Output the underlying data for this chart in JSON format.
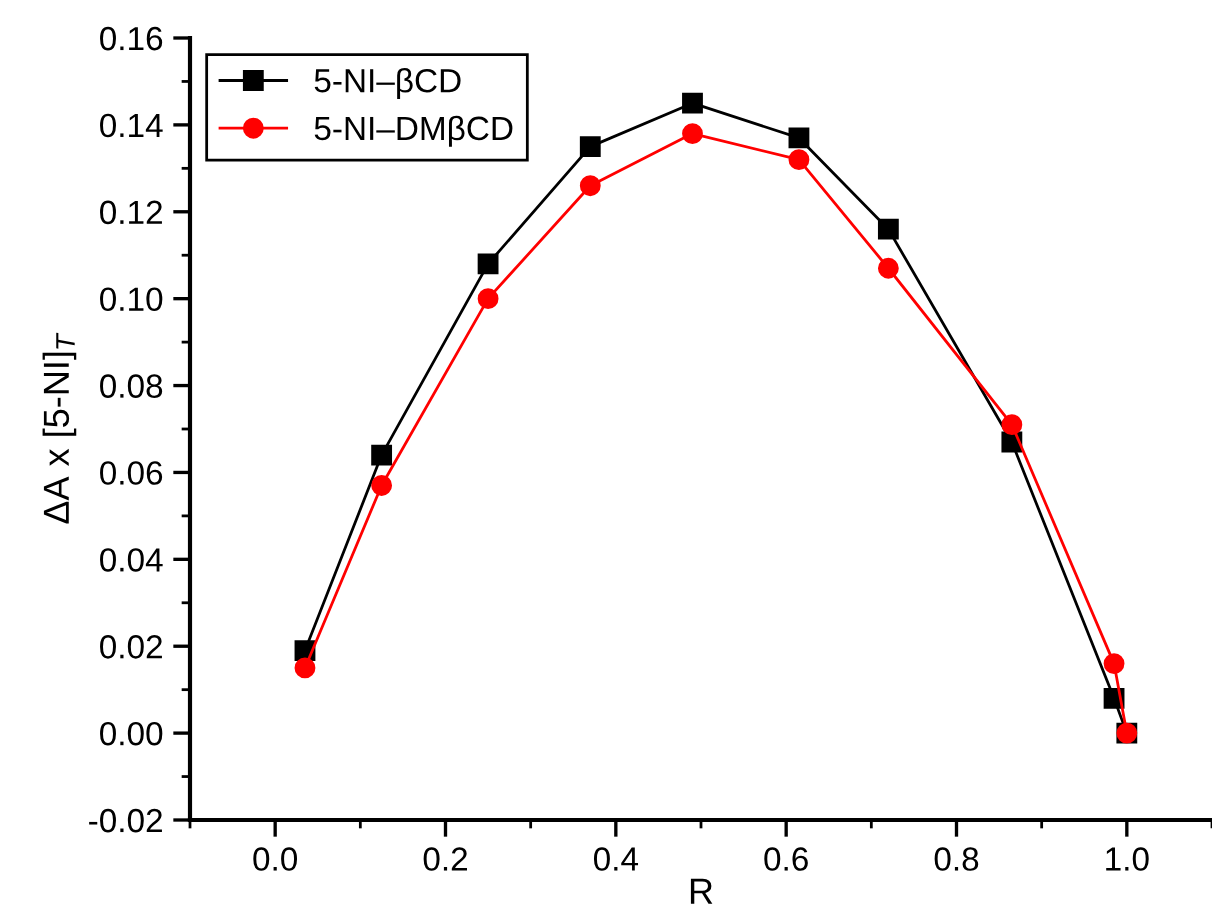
{
  "chart_data": {
    "type": "line",
    "xlabel": "R",
    "ylabel": "ΔA x [5-NI]$_{T}$",
    "x": [
      0.035,
      0.125,
      0.25,
      0.37,
      0.49,
      0.615,
      0.72,
      0.865,
      0.985,
      1.0
    ],
    "series": [
      {
        "name": "5-NI–βCD",
        "color": "#000000",
        "marker": "square",
        "values": [
          0.019,
          0.064,
          0.108,
          0.135,
          0.145,
          0.137,
          0.116,
          0.067,
          0.008,
          0.0
        ]
      },
      {
        "name": "5-NI–DMβCD",
        "color": "#ff0000",
        "marker": "circle",
        "values": [
          0.015,
          0.057,
          0.1,
          0.126,
          0.138,
          0.132,
          0.107,
          0.071,
          0.016,
          0.0
        ]
      }
    ],
    "xlim": [
      -0.1,
      1.1
    ],
    "ylim": [
      -0.02,
      0.16
    ],
    "xticks": [
      {
        "value": 0.0,
        "label": "0.0"
      },
      {
        "value": 0.2,
        "label": "0.2"
      },
      {
        "value": 0.4,
        "label": "0.4"
      },
      {
        "value": 0.6,
        "label": "0.6"
      },
      {
        "value": 0.8,
        "label": "0.8"
      },
      {
        "value": 1.0,
        "label": "1.0"
      }
    ],
    "yticks": [
      {
        "value": -0.02,
        "label": "-0.02"
      },
      {
        "value": 0.0,
        "label": "0.00"
      },
      {
        "value": 0.02,
        "label": "0.02"
      },
      {
        "value": 0.04,
        "label": "0.04"
      },
      {
        "value": 0.06,
        "label": "0.06"
      },
      {
        "value": 0.08,
        "label": "0.08"
      },
      {
        "value": 0.1,
        "label": "0.10"
      },
      {
        "value": 0.12,
        "label": "0.12"
      },
      {
        "value": 0.14,
        "label": "0.14"
      },
      {
        "value": 0.16,
        "label": "0.16"
      }
    ],
    "grid": false,
    "legend": "top left",
    "line_style": "solid"
  }
}
